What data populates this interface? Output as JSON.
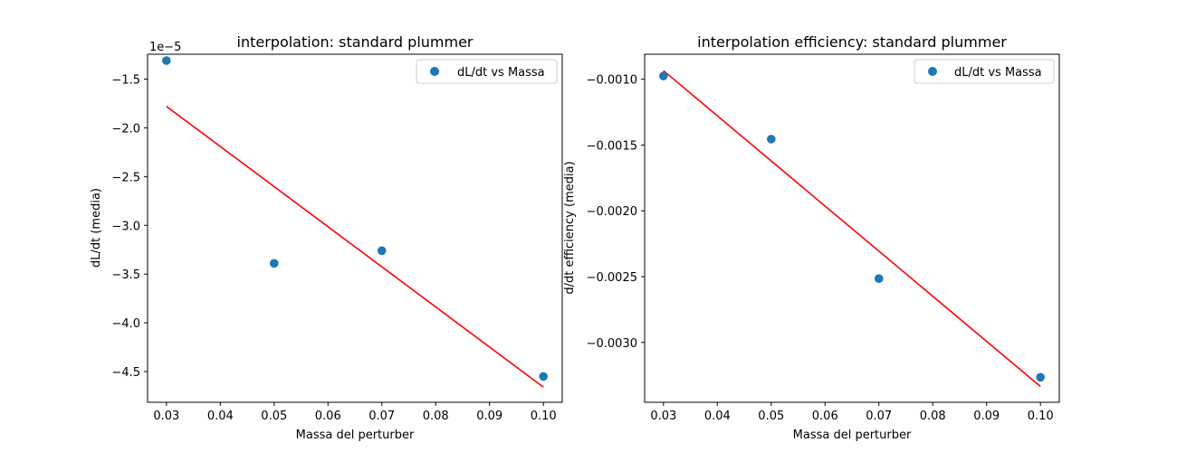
{
  "colors": {
    "scatter": "#1f77b4",
    "fit_line": "#ff0000",
    "axes": "#000000",
    "background": "#ffffff"
  },
  "chart_data": [
    {
      "type": "scatter",
      "title": "interpolation: standard plummer",
      "xlabel": "Massa del perturber",
      "ylabel": "dL/dt (media)",
      "offset_text": "1e−5",
      "grid": false,
      "legend": {
        "position": "top-right",
        "entries": [
          "dL/dt vs Massa"
        ]
      },
      "xlim": [
        0.0265,
        0.1035
      ],
      "ylim": [
        -4.815,
        -1.245
      ],
      "y_scale_factor": 1e-05,
      "xticks": [
        0.03,
        0.04,
        0.05,
        0.06,
        0.07,
        0.08,
        0.09,
        0.1
      ],
      "xtick_labels": [
        "0.03",
        "0.04",
        "0.05",
        "0.06",
        "0.07",
        "0.08",
        "0.09",
        "0.10"
      ],
      "yticks": [
        -4.5,
        -4.0,
        -3.5,
        -3.0,
        -2.5,
        -2.0,
        -1.5
      ],
      "ytick_labels": [
        "−4.5",
        "−4.0",
        "−3.5",
        "−3.0",
        "−2.5",
        "−2.0",
        "−1.5"
      ],
      "series": [
        {
          "name": "dL/dt vs Massa",
          "kind": "scatter",
          "x": [
            0.03,
            0.05,
            0.07,
            0.1
          ],
          "y": [
            -1.31,
            -3.39,
            -3.26,
            -4.55
          ]
        },
        {
          "kind": "line",
          "x": [
            0.03,
            0.1
          ],
          "y": [
            -1.78,
            -4.66
          ]
        }
      ]
    },
    {
      "type": "scatter",
      "title": "interpolation efficiency: standard plummer",
      "xlabel": "Massa del perturber",
      "ylabel": "d/dt efficiency (media)",
      "offset_text": "",
      "grid": false,
      "legend": {
        "position": "top-right",
        "entries": [
          "dL/dt vs Massa"
        ]
      },
      "xlim": [
        0.0265,
        0.1035
      ],
      "ylim": [
        -0.003455,
        -0.00081
      ],
      "y_scale_factor": 1,
      "xticks": [
        0.03,
        0.04,
        0.05,
        0.06,
        0.07,
        0.08,
        0.09,
        0.1
      ],
      "xtick_labels": [
        "0.03",
        "0.04",
        "0.05",
        "0.06",
        "0.07",
        "0.08",
        "0.09",
        "0.10"
      ],
      "yticks": [
        -0.003,
        -0.0025,
        -0.002,
        -0.0015,
        -0.001
      ],
      "ytick_labels": [
        "−0.0030",
        "−0.0025",
        "−0.0020",
        "−0.0015",
        "−0.0010"
      ],
      "series": [
        {
          "name": "dL/dt vs Massa",
          "kind": "scatter",
          "x": [
            0.03,
            0.05,
            0.07,
            0.1
          ],
          "y": [
            -0.000975,
            -0.001455,
            -0.002515,
            -0.003265
          ]
        },
        {
          "kind": "line",
          "x": [
            0.03,
            0.1
          ],
          "y": [
            -0.000935,
            -0.003335
          ]
        }
      ]
    }
  ]
}
